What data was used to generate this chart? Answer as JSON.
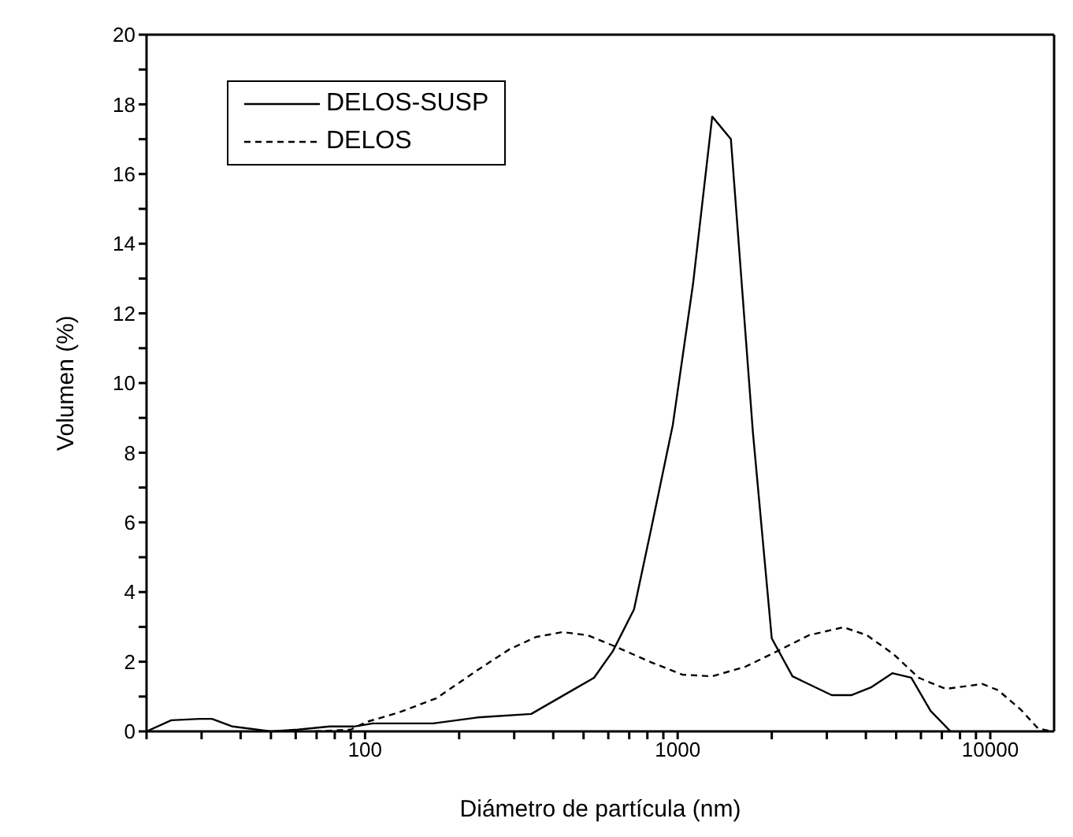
{
  "chart_data": {
    "type": "line",
    "xlabel": "Diámetro de partícula (nm)",
    "ylabel": "Volumen (%)",
    "log": "x",
    "xlim": [
      20,
      16000
    ],
    "xticks": [
      {
        "value": 20,
        "label": null
      },
      {
        "value": 30,
        "label": null
      },
      {
        "value": 40,
        "label": null
      },
      {
        "value": 50,
        "label": null
      },
      {
        "value": 60,
        "label": null
      },
      {
        "value": 70,
        "label": null
      },
      {
        "value": 80,
        "label": null
      },
      {
        "value": 90,
        "label": null
      },
      100,
      {
        "value": 200,
        "label": null
      },
      {
        "value": 300,
        "label": null
      },
      {
        "value": 400,
        "label": null
      },
      {
        "value": 500,
        "label": null
      },
      {
        "value": 600,
        "label": null
      },
      {
        "value": 700,
        "label": null
      },
      {
        "value": 800,
        "label": null
      },
      {
        "value": 900,
        "label": null
      },
      1000,
      {
        "value": 2000,
        "label": null
      },
      {
        "value": 3000,
        "label": null
      },
      {
        "value": 4000,
        "label": null
      },
      {
        "value": 5000,
        "label": null
      },
      {
        "value": 6000,
        "label": null
      },
      {
        "value": 7000,
        "label": null
      },
      {
        "value": 8000,
        "label": null
      },
      {
        "value": 9000,
        "label": null
      },
      10000
    ],
    "ylim": [
      0,
      20
    ],
    "yticks": [
      0,
      {
        "value": 1,
        "label": null
      },
      2,
      {
        "value": 3,
        "label": null
      },
      4,
      {
        "value": 5,
        "label": null
      },
      6,
      {
        "value": 7,
        "label": null
      },
      8,
      {
        "value": 9,
        "label": null
      },
      10,
      {
        "value": 11,
        "label": null
      },
      12,
      {
        "value": 13,
        "label": null
      },
      14,
      {
        "value": 15,
        "label": null
      },
      16,
      {
        "value": 17,
        "label": null
      },
      18,
      {
        "value": 19,
        "label": null
      },
      20
    ],
    "grid": false,
    "legend": "top left",
    "marker": "none",
    "series": [
      {
        "name": "DELOS-SUSP",
        "color": "#000000",
        "line_style": "solid",
        "x": [
          20,
          24,
          29.5,
          32.4,
          37.7,
          50,
          61,
          77,
          92,
          106,
          165,
          229,
          340,
          460,
          540,
          620,
          725,
          820,
          965,
          1120,
          1290,
          1480,
          1740,
          2000,
          2330,
          3110,
          3590,
          4170,
          4860,
          5590,
          6440,
          7460
        ],
        "values": [
          0,
          0.32,
          0.36,
          0.36,
          0.14,
          0,
          0.05,
          0.14,
          0.14,
          0.23,
          0.23,
          0.4,
          0.5,
          1.18,
          1.54,
          2.3,
          3.5,
          5.75,
          8.8,
          12.85,
          17.65,
          17.0,
          8.6,
          2.67,
          1.58,
          1.04,
          1.04,
          1.27,
          1.67,
          1.54,
          0.59,
          0
        ]
      },
      {
        "name": "DELOS",
        "color": "#000000",
        "line_style": "dashed",
        "x": [
          69,
          90,
          101,
          128,
          169,
          229,
          289,
          352,
          428,
          515,
          630,
          820,
          1035,
          1290,
          1650,
          2080,
          2630,
          3390,
          4030,
          4900,
          5900,
          7200,
          9450,
          10600,
          12500,
          14200,
          15700
        ],
        "values": [
          0,
          0.05,
          0.27,
          0.54,
          0.95,
          1.76,
          2.35,
          2.71,
          2.85,
          2.76,
          2.44,
          1.99,
          1.63,
          1.58,
          1.86,
          2.3,
          2.76,
          2.99,
          2.76,
          2.22,
          1.54,
          1.22,
          1.36,
          1.18,
          0.63,
          0.09,
          0
        ]
      }
    ]
  }
}
